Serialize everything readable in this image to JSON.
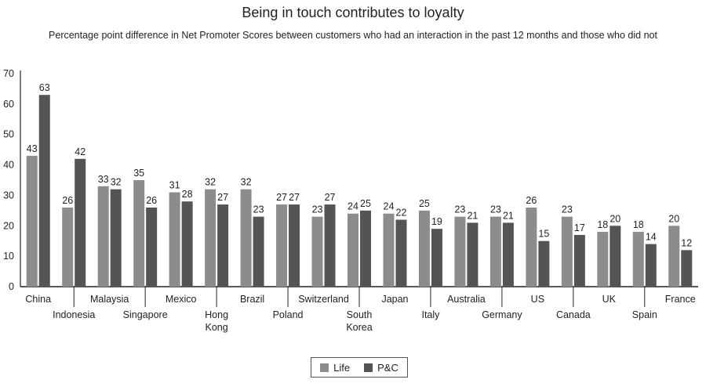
{
  "chart_data": {
    "type": "bar",
    "title": "Being in touch contributes to loyalty",
    "subtitle": "Percentage point difference in Net Promoter Scores between customers who had an interaction in the past 12 months and those who did not",
    "categories": [
      {
        "label": [
          "China"
        ],
        "row": 1
      },
      {
        "label": [
          "Indonesia"
        ],
        "row": 2
      },
      {
        "label": [
          "Malaysia"
        ],
        "row": 1
      },
      {
        "label": [
          "Singapore"
        ],
        "row": 2
      },
      {
        "label": [
          "Mexico"
        ],
        "row": 1
      },
      {
        "label": [
          "Hong",
          "Kong"
        ],
        "row": 2
      },
      {
        "label": [
          "Brazil"
        ],
        "row": 1
      },
      {
        "label": [
          "Poland"
        ],
        "row": 2
      },
      {
        "label": [
          "Switzerland"
        ],
        "row": 1
      },
      {
        "label": [
          "South",
          "Korea"
        ],
        "row": 2
      },
      {
        "label": [
          "Japan"
        ],
        "row": 1
      },
      {
        "label": [
          "Italy"
        ],
        "row": 2
      },
      {
        "label": [
          "Australia"
        ],
        "row": 1
      },
      {
        "label": [
          "Germany"
        ],
        "row": 2
      },
      {
        "label": [
          "US"
        ],
        "row": 1
      },
      {
        "label": [
          "Canada"
        ],
        "row": 2
      },
      {
        "label": [
          "UK"
        ],
        "row": 1
      },
      {
        "label": [
          "Spain"
        ],
        "row": 2
      },
      {
        "label": [
          "France"
        ],
        "row": 1
      }
    ],
    "series": [
      {
        "name": "Life",
        "color": "#8c8c8c",
        "values": [
          43,
          26,
          33,
          35,
          31,
          32,
          32,
          27,
          23,
          24,
          24,
          25,
          23,
          23,
          26,
          23,
          18,
          18,
          20
        ]
      },
      {
        "name": "P&C",
        "color": "#545454",
        "values": [
          63,
          42,
          32,
          26,
          28,
          27,
          23,
          27,
          27,
          25,
          22,
          19,
          21,
          21,
          15,
          17,
          20,
          14,
          12
        ]
      }
    ],
    "ylim": [
      0,
      70
    ],
    "yticks": [
      0,
      10,
      20,
      30,
      40,
      50,
      60,
      70
    ],
    "grid": false,
    "legend_position": "bottom-center"
  }
}
